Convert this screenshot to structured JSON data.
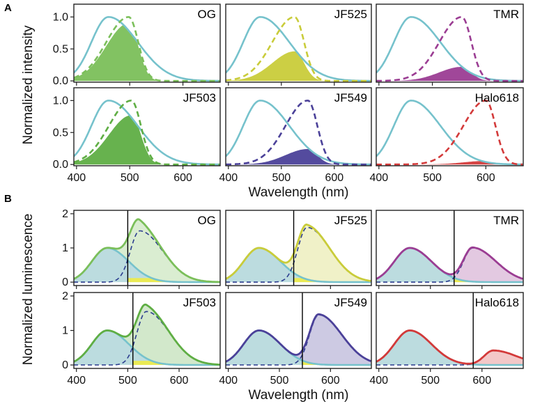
{
  "colors": {
    "donor": "#76c2cc",
    "donor_fill": "#bcdcdf",
    "dashed": "#2b3d8f",
    "cutoff": "#000000",
    "OG": "#7bbf5a",
    "JF525": "#c9cc3a",
    "TMR": "#9b3d93",
    "JF503": "#5fae44",
    "JF549": "#4b4199",
    "Halo618": "#d33a3a",
    "yellow": "#f2ec3c"
  },
  "chart_data": [
    {
      "panel": "A",
      "type": "line",
      "xlabel": "Wavelength (nm)",
      "ylabel": "Normalized intensity",
      "xlim": [
        395,
        670
      ],
      "ylim": [
        -0.02,
        1.2
      ],
      "x_ticks": [
        400,
        500,
        600
      ],
      "y_ticks": [
        0.0,
        0.5,
        1.0
      ],
      "x_tick_labels": [
        "400",
        "500",
        "600"
      ],
      "y_tick_labels": [
        "0.0",
        "0.5",
        "1.0"
      ],
      "donor_peak": 460,
      "panels": [
        {
          "name": "OG",
          "color_key": "OG",
          "acceptor_peak": 498,
          "overlap_area_max": 0.82
        },
        {
          "name": "JF525",
          "color_key": "JF525",
          "acceptor_peak": 525,
          "overlap_area_max": 0.42
        },
        {
          "name": "TMR",
          "color_key": "TMR",
          "acceptor_peak": 555,
          "overlap_area_max": 0.2
        },
        {
          "name": "JF503",
          "color_key": "JF503",
          "acceptor_peak": 503,
          "overlap_area_max": 0.7
        },
        {
          "name": "JF549",
          "color_key": "JF549",
          "acceptor_peak": 550,
          "overlap_area_max": 0.22
        },
        {
          "name": "Halo618",
          "color_key": "Halo618",
          "acceptor_peak": 600,
          "overlap_area_max": 0.05
        }
      ]
    },
    {
      "panel": "B",
      "type": "area",
      "xlabel": "Wavelength (nm)",
      "ylabel": "Normalized luminescence",
      "xlim": [
        395,
        680
      ],
      "ylim": [
        -0.1,
        2.1
      ],
      "x_ticks": [
        400,
        500,
        600
      ],
      "y_ticks": [
        0,
        1,
        2
      ],
      "x_tick_labels": [
        "400",
        "500",
        "600"
      ],
      "y_tick_labels": [
        "0",
        "1",
        "2"
      ],
      "donor_peak": 460,
      "donor_height": 1.0,
      "panels": [
        {
          "name": "OG",
          "color_key": "OG",
          "acceptor_peak": 523,
          "acceptor_height": 1.5,
          "cutoff": 500
        },
        {
          "name": "JF525",
          "color_key": "JF525",
          "acceptor_peak": 554,
          "acceptor_height": 1.6,
          "cutoff": 528
        },
        {
          "name": "TMR",
          "color_key": "TMR",
          "acceptor_peak": 582,
          "acceptor_height": 1.0,
          "cutoff": 546
        },
        {
          "name": "JF503",
          "color_key": "JF503",
          "acceptor_peak": 536,
          "acceptor_height": 1.55,
          "cutoff": 510
        },
        {
          "name": "JF549",
          "color_key": "JF549",
          "acceptor_peak": 577,
          "acceptor_height": 1.45,
          "cutoff": 545
        },
        {
          "name": "Halo618",
          "color_key": "Halo618",
          "acceptor_peak": 622,
          "acceptor_height": 0.42,
          "cutoff": 583
        }
      ]
    }
  ]
}
